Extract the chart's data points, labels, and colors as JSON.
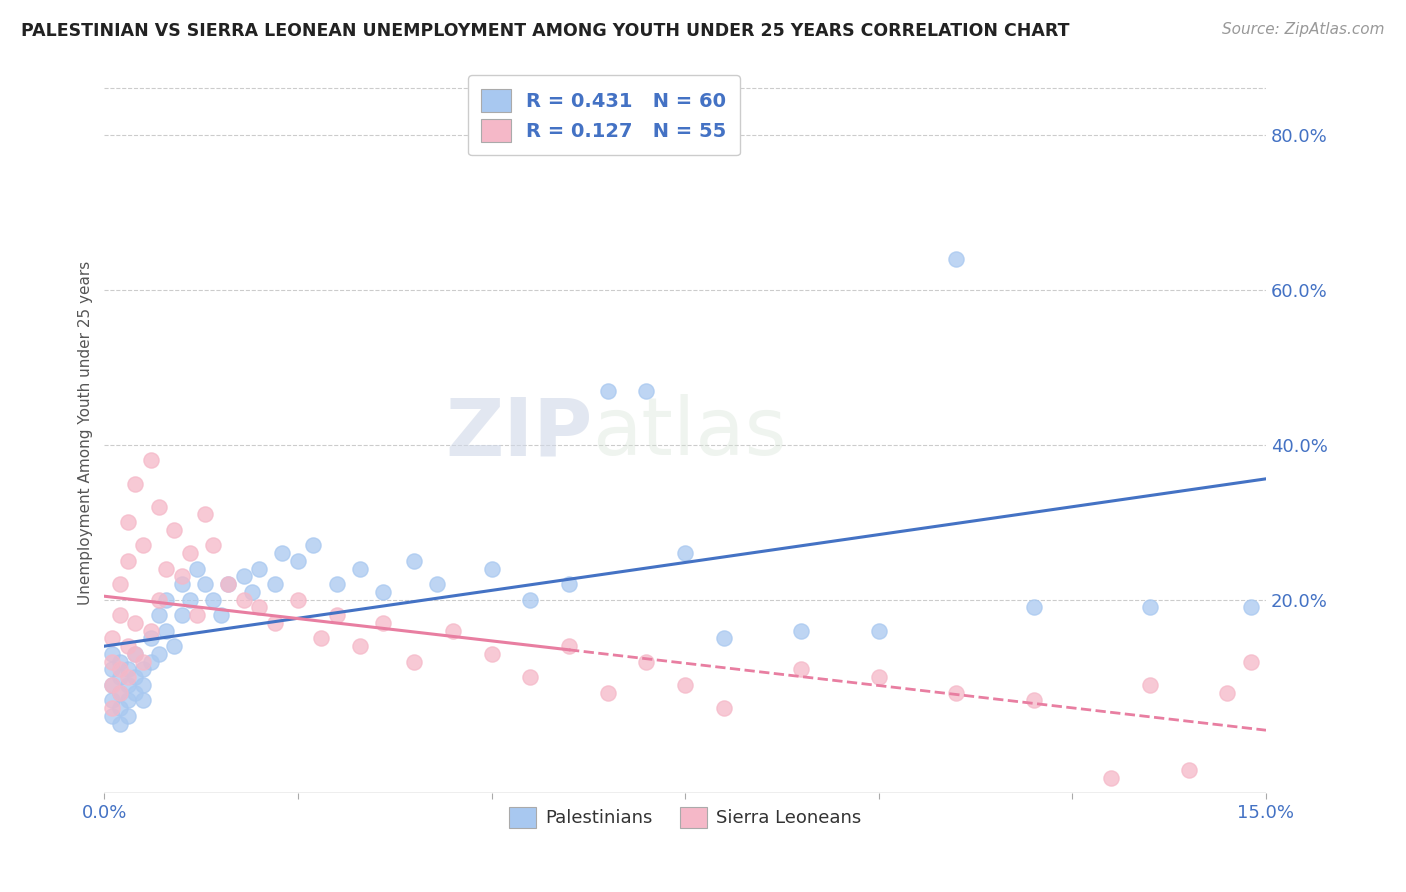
{
  "title": "PALESTINIAN VS SIERRA LEONEAN UNEMPLOYMENT AMONG YOUTH UNDER 25 YEARS CORRELATION CHART",
  "source": "Source: ZipAtlas.com",
  "ylabel": "Unemployment Among Youth under 25 years",
  "xlim": [
    0.0,
    0.15
  ],
  "ylim": [
    -0.05,
    0.88
  ],
  "xtick_vals": [
    0.0,
    0.025,
    0.05,
    0.075,
    0.1,
    0.125,
    0.15
  ],
  "xticklabels": [
    "0.0%",
    "",
    "",
    "",
    "",
    "",
    "15.0%"
  ],
  "yticks_right": [
    0.2,
    0.4,
    0.6,
    0.8
  ],
  "ytick_right_labels": [
    "20.0%",
    "40.0%",
    "60.0%",
    "80.0%"
  ],
  "blue_color": "#A8C8F0",
  "pink_color": "#F5B8C8",
  "blue_line_color": "#4472C4",
  "pink_line_color": "#E87EA1",
  "blue_R": 0.431,
  "blue_N": 60,
  "pink_R": 0.127,
  "pink_N": 55,
  "watermark_zip": "ZIP",
  "watermark_atlas": "atlas",
  "legend_palestinians": "Palestinians",
  "legend_sierra": "Sierra Leoneans",
  "background_color": "#FFFFFF",
  "grid_color": "#CCCCCC",
  "blue_scatter_x": [
    0.001,
    0.001,
    0.001,
    0.001,
    0.001,
    0.002,
    0.002,
    0.002,
    0.002,
    0.002,
    0.003,
    0.003,
    0.003,
    0.003,
    0.004,
    0.004,
    0.004,
    0.005,
    0.005,
    0.005,
    0.006,
    0.006,
    0.007,
    0.007,
    0.008,
    0.008,
    0.009,
    0.01,
    0.01,
    0.011,
    0.012,
    0.013,
    0.014,
    0.015,
    0.016,
    0.018,
    0.019,
    0.02,
    0.022,
    0.023,
    0.025,
    0.027,
    0.03,
    0.033,
    0.036,
    0.04,
    0.043,
    0.05,
    0.055,
    0.06,
    0.065,
    0.07,
    0.075,
    0.08,
    0.09,
    0.1,
    0.11,
    0.12,
    0.135,
    0.148
  ],
  "blue_scatter_y": [
    0.07,
    0.09,
    0.11,
    0.13,
    0.05,
    0.08,
    0.1,
    0.12,
    0.06,
    0.04,
    0.09,
    0.11,
    0.07,
    0.05,
    0.1,
    0.08,
    0.13,
    0.09,
    0.07,
    0.11,
    0.12,
    0.15,
    0.13,
    0.18,
    0.16,
    0.2,
    0.14,
    0.18,
    0.22,
    0.2,
    0.24,
    0.22,
    0.2,
    0.18,
    0.22,
    0.23,
    0.21,
    0.24,
    0.22,
    0.26,
    0.25,
    0.27,
    0.22,
    0.24,
    0.21,
    0.25,
    0.22,
    0.24,
    0.2,
    0.22,
    0.47,
    0.47,
    0.26,
    0.15,
    0.16,
    0.16,
    0.64,
    0.19,
    0.19,
    0.19
  ],
  "pink_scatter_x": [
    0.001,
    0.001,
    0.001,
    0.001,
    0.002,
    0.002,
    0.002,
    0.002,
    0.003,
    0.003,
    0.003,
    0.003,
    0.004,
    0.004,
    0.004,
    0.005,
    0.005,
    0.006,
    0.006,
    0.007,
    0.007,
    0.008,
    0.009,
    0.01,
    0.011,
    0.012,
    0.013,
    0.014,
    0.016,
    0.018,
    0.02,
    0.022,
    0.025,
    0.028,
    0.03,
    0.033,
    0.036,
    0.04,
    0.045,
    0.05,
    0.055,
    0.06,
    0.065,
    0.07,
    0.075,
    0.08,
    0.09,
    0.1,
    0.11,
    0.12,
    0.13,
    0.135,
    0.14,
    0.145,
    0.148
  ],
  "pink_scatter_y": [
    0.06,
    0.09,
    0.12,
    0.15,
    0.08,
    0.11,
    0.18,
    0.22,
    0.1,
    0.14,
    0.25,
    0.3,
    0.13,
    0.17,
    0.35,
    0.12,
    0.27,
    0.16,
    0.38,
    0.2,
    0.32,
    0.24,
    0.29,
    0.23,
    0.26,
    0.18,
    0.31,
    0.27,
    0.22,
    0.2,
    0.19,
    0.17,
    0.2,
    0.15,
    0.18,
    0.14,
    0.17,
    0.12,
    0.16,
    0.13,
    0.1,
    0.14,
    0.08,
    0.12,
    0.09,
    0.06,
    0.11,
    0.1,
    0.08,
    0.07,
    -0.03,
    0.09,
    -0.02,
    0.08,
    0.12
  ]
}
